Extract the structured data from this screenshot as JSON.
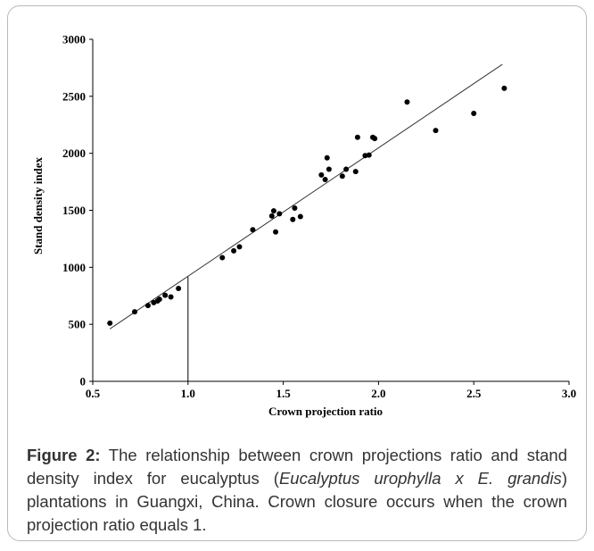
{
  "chart_data": {
    "type": "scatter",
    "xlabel": "Crown projection ratio",
    "ylabel": "Stand density index",
    "xlim": [
      0.5,
      3.0
    ],
    "ylim": [
      0,
      3000
    ],
    "x_ticks": [
      "0.5",
      "1.0",
      "1.5",
      "2.0",
      "2.5",
      "3.0"
    ],
    "y_ticks": [
      "0",
      "500",
      "1000",
      "1500",
      "2000",
      "2500",
      "3000"
    ],
    "grid": false,
    "points": [
      {
        "x": 0.59,
        "y": 510
      },
      {
        "x": 0.72,
        "y": 610
      },
      {
        "x": 0.79,
        "y": 665
      },
      {
        "x": 0.82,
        "y": 690
      },
      {
        "x": 0.84,
        "y": 705
      },
      {
        "x": 0.85,
        "y": 720
      },
      {
        "x": 0.88,
        "y": 755
      },
      {
        "x": 0.91,
        "y": 740
      },
      {
        "x": 0.95,
        "y": 815
      },
      {
        "x": 1.18,
        "y": 1085
      },
      {
        "x": 1.24,
        "y": 1145
      },
      {
        "x": 1.27,
        "y": 1180
      },
      {
        "x": 1.34,
        "y": 1330
      },
      {
        "x": 1.44,
        "y": 1450
      },
      {
        "x": 1.45,
        "y": 1495
      },
      {
        "x": 1.46,
        "y": 1310
      },
      {
        "x": 1.48,
        "y": 1470
      },
      {
        "x": 1.55,
        "y": 1420
      },
      {
        "x": 1.56,
        "y": 1520
      },
      {
        "x": 1.59,
        "y": 1445
      },
      {
        "x": 1.7,
        "y": 1810
      },
      {
        "x": 1.72,
        "y": 1770
      },
      {
        "x": 1.73,
        "y": 1960
      },
      {
        "x": 1.74,
        "y": 1860
      },
      {
        "x": 1.81,
        "y": 1800
      },
      {
        "x": 1.83,
        "y": 1860
      },
      {
        "x": 1.88,
        "y": 1840
      },
      {
        "x": 1.89,
        "y": 2140
      },
      {
        "x": 1.93,
        "y": 1980
      },
      {
        "x": 1.95,
        "y": 1985
      },
      {
        "x": 1.97,
        "y": 2140
      },
      {
        "x": 1.98,
        "y": 2130
      },
      {
        "x": 2.15,
        "y": 2450
      },
      {
        "x": 2.3,
        "y": 2200
      },
      {
        "x": 2.5,
        "y": 2350
      },
      {
        "x": 2.66,
        "y": 2570
      }
    ],
    "trendline": {
      "x": [
        0.59,
        2.65
      ],
      "y": [
        460,
        2780
      ]
    },
    "reference_line": {
      "x": 1.0,
      "y": [
        0,
        920
      ]
    }
  },
  "caption": {
    "label": "Figure 2:",
    "text_before_italic": " The relationship between crown projections ratio and stand density index for eucalyptus (",
    "italic": "Eucalyptus urophylla x E. grandis",
    "text_after_italic": ") plantations in Guangxi, China. Crown closure occurs when the crown projection ratio equals 1."
  }
}
